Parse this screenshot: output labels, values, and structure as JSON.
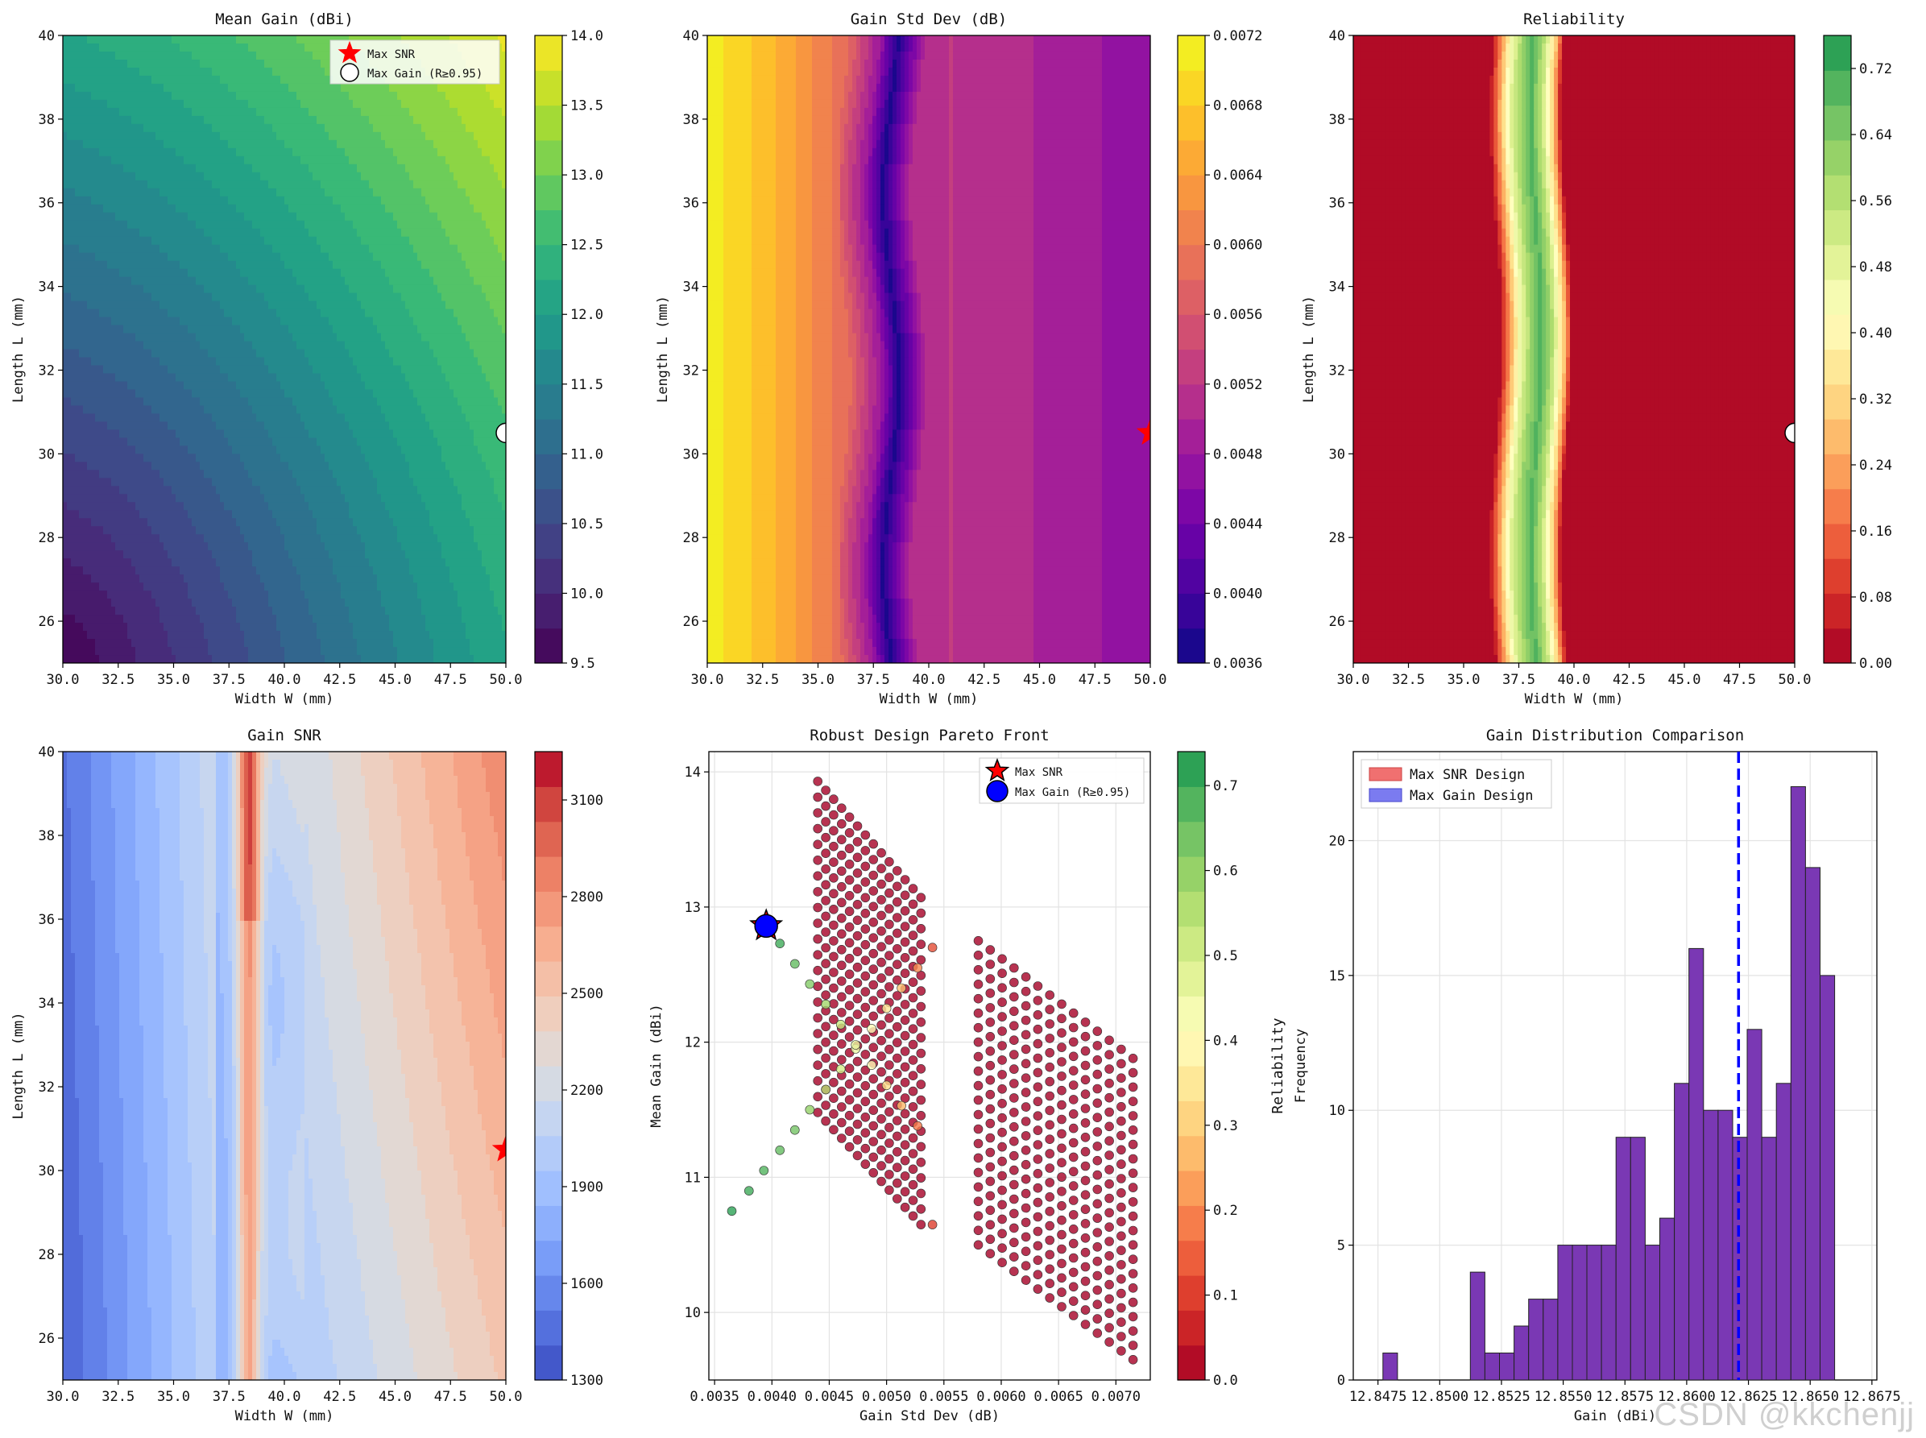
{
  "chart_data": [
    {
      "type": "contour",
      "title": "Mean Gain (dBi)",
      "xlabel": "Width W (mm)",
      "ylabel": "Length L (mm)",
      "xlim": [
        30,
        50
      ],
      "ylim": [
        25,
        40
      ],
      "xticks": [
        "30.0",
        "32.5",
        "35.0",
        "37.5",
        "40.0",
        "42.5",
        "45.0",
        "47.5",
        "50.0"
      ],
      "yticks": [
        "26",
        "28",
        "30",
        "32",
        "34",
        "36",
        "38",
        "40"
      ],
      "colormap": "viridis",
      "colorbar": {
        "min": 9.5,
        "max": 14.0,
        "ticks": [
          "9.5",
          "10.0",
          "10.5",
          "11.0",
          "11.5",
          "12.0",
          "12.5",
          "13.0",
          "13.5",
          "14.0"
        ]
      },
      "z_corners": {
        "min_at": [
          30,
          25
        ],
        "value_min": 9.5,
        "value_max": 14.0
      },
      "legend": {
        "position": "top-right",
        "entries": [
          "Max SNR",
          "Max Gain (R≥0.95)"
        ]
      },
      "markers": [
        {
          "label": "Max Gain (R≥0.95)",
          "x": 50.0,
          "y": 30.5,
          "shape": "circle"
        }
      ]
    },
    {
      "type": "contour",
      "title": "Gain Std Dev (dB)",
      "xlabel": "Width W (mm)",
      "ylabel": "Length L (mm)",
      "xlim": [
        30,
        50
      ],
      "ylim": [
        25,
        40
      ],
      "xticks": [
        "30.0",
        "32.5",
        "35.0",
        "37.5",
        "40.0",
        "42.5",
        "45.0",
        "47.5",
        "50.0"
      ],
      "yticks": [
        "26",
        "28",
        "30",
        "32",
        "34",
        "36",
        "38",
        "40"
      ],
      "colormap": "plasma",
      "colorbar": {
        "min": 0.0036,
        "max": 0.0072,
        "ticks": [
          "0.0036",
          "0.0040",
          "0.0044",
          "0.0048",
          "0.0052",
          "0.0056",
          "0.0060",
          "0.0064",
          "0.0068",
          "0.0072"
        ]
      },
      "profile_along_w": {
        "w": [
          30,
          32,
          34,
          36,
          37.5,
          38.3,
          39.5,
          41,
          44,
          47,
          50
        ],
        "std": [
          0.0071,
          0.0068,
          0.0064,
          0.0059,
          0.0048,
          0.0037,
          0.005,
          0.0052,
          0.00505,
          0.00485,
          0.00465
        ]
      },
      "markers": [
        {
          "label": "Max SNR",
          "x": 50.0,
          "y": 30.5,
          "shape": "star"
        }
      ]
    },
    {
      "type": "contour",
      "title": "Reliability",
      "xlabel": "Width W (mm)",
      "ylabel": "Length L (mm)",
      "xlim": [
        30,
        50
      ],
      "ylim": [
        25,
        40
      ],
      "xticks": [
        "30.0",
        "32.5",
        "35.0",
        "37.5",
        "40.0",
        "42.5",
        "45.0",
        "47.5",
        "50.0"
      ],
      "yticks": [
        "26",
        "28",
        "30",
        "32",
        "34",
        "36",
        "38",
        "40"
      ],
      "colormap": "RdYlGn",
      "colorbar": {
        "min": 0.0,
        "max": 0.76,
        "ticks": [
          "0.00",
          "0.08",
          "0.16",
          "0.24",
          "0.32",
          "0.40",
          "0.48",
          "0.56",
          "0.64",
          "0.72"
        ]
      },
      "profile_along_w": {
        "w": [
          30,
          36.4,
          36.8,
          37.3,
          37.8,
          38.3,
          38.8,
          39.3,
          39.7,
          50
        ],
        "reliability": [
          0.0,
          0.0,
          0.2,
          0.45,
          0.6,
          0.7,
          0.55,
          0.3,
          0.0,
          0.0
        ]
      },
      "markers": [
        {
          "label": "Max Gain (R≥0.95)",
          "x": 50.0,
          "y": 30.5,
          "shape": "circle"
        }
      ]
    },
    {
      "type": "contour",
      "title": "Gain SNR",
      "xlabel": "Width W (mm)",
      "ylabel": "Length L (mm)",
      "xlim": [
        30,
        50
      ],
      "ylim": [
        25,
        40
      ],
      "xticks": [
        "30.0",
        "32.5",
        "35.0",
        "37.5",
        "40.0",
        "42.5",
        "45.0",
        "47.5",
        "50.0"
      ],
      "yticks": [
        "26",
        "28",
        "30",
        "32",
        "34",
        "36",
        "38",
        "40"
      ],
      "colormap": "coolwarm",
      "colorbar": {
        "min": 1300,
        "max": 3250,
        "ticks": [
          "1300",
          "1600",
          "1900",
          "2200",
          "2500",
          "2800",
          "3100"
        ]
      },
      "markers": [
        {
          "label": "Max SNR",
          "x": 50.0,
          "y": 30.5,
          "shape": "star"
        }
      ]
    },
    {
      "type": "scatter",
      "title": "Robust Design Pareto Front",
      "xlabel": "Gain Std Dev (dB)",
      "ylabel": "Mean Gain (dBi)",
      "xlim": [
        0.00345,
        0.0073
      ],
      "ylim": [
        9.5,
        14.15
      ],
      "xticks": [
        "0.0035",
        "0.0040",
        "0.0045",
        "0.0050",
        "0.0055",
        "0.0060",
        "0.0065",
        "0.0070"
      ],
      "yticks": [
        "10",
        "11",
        "12",
        "13",
        "14"
      ],
      "grid": true,
      "colormap": "RdYlGn",
      "colorbar": {
        "label": "Reliability",
        "min": 0.0,
        "max": 0.74,
        "ticks": [
          "0.0",
          "0.1",
          "0.2",
          "0.3",
          "0.4",
          "0.5",
          "0.6",
          "0.7"
        ]
      },
      "clusters": [
        {
          "name": "",
          "std_range": [
            0.0044,
            0.0053
          ],
          "gain_top": [
            13.93,
            13.07
          ],
          "gain_bottom": [
            11.48,
            10.65
          ],
          "reliability": 0.0
        },
        {
          "name": "",
          "std_range": [
            0.0058,
            0.00715
          ],
          "gain_top": [
            12.75,
            11.88
          ],
          "gain_bottom": [
            10.5,
            9.65
          ],
          "reliability": 0.0
        }
      ],
      "diagonal_points": {
        "std": [
          0.00365,
          0.0038,
          0.00393,
          0.00407,
          0.0042,
          0.00433,
          0.00447,
          0.0046,
          0.00473,
          0.00487,
          0.005,
          0.00513,
          0.00527,
          0.0054
        ],
        "gain": [
          10.75,
          10.9,
          11.05,
          11.2,
          11.35,
          11.5,
          11.65,
          11.8,
          11.95,
          12.1,
          12.25,
          12.4,
          12.55,
          12.7
        ],
        "reliability": [
          0.72,
          0.7,
          0.68,
          0.66,
          0.64,
          0.6,
          0.55,
          0.5,
          0.45,
          0.4,
          0.35,
          0.28,
          0.2,
          0.12
        ]
      },
      "diagonal_points_2": {
        "std": [
          0.00393,
          0.00407,
          0.0042,
          0.00433,
          0.00447,
          0.0046,
          0.00473,
          0.00487,
          0.005,
          0.00513,
          0.00527,
          0.0054
        ],
        "gain": [
          12.88,
          12.73,
          12.58,
          12.43,
          12.28,
          12.13,
          11.98,
          11.83,
          11.68,
          11.53,
          11.38,
          10.65
        ],
        "reliability": [
          0.72,
          0.7,
          0.66,
          0.62,
          0.58,
          0.52,
          0.46,
          0.4,
          0.33,
          0.26,
          0.18,
          0.1
        ]
      },
      "highlighted": [
        {
          "label": "Max SNR",
          "x": 0.00395,
          "y": 12.86,
          "shape": "star",
          "color": "#ff0000"
        },
        {
          "label": "Max Gain (R≥0.95)",
          "x": 0.00395,
          "y": 12.86,
          "shape": "circle",
          "color": "#0000ff"
        }
      ],
      "legend": {
        "position": "top-right",
        "entries": [
          "Max SNR",
          "Max Gain (R≥0.95)"
        ]
      }
    },
    {
      "type": "histogram",
      "title": "Gain Distribution Comparison",
      "xlabel": "Gain (dBi)",
      "ylabel": "Frequency",
      "xlim": [
        12.8465,
        12.8677
      ],
      "ylim": [
        0,
        23.3
      ],
      "xticks": [
        "12.8475",
        "12.8500",
        "12.8525",
        "12.8550",
        "12.8575",
        "12.8600",
        "12.8625",
        "12.8650",
        "12.8675"
      ],
      "yticks": [
        "0",
        "5",
        "10",
        "15",
        "20"
      ],
      "grid": true,
      "legend": {
        "position": "top-left",
        "entries": [
          "Max SNR Design",
          "Max Gain Design"
        ]
      },
      "bin_start": 12.8477,
      "bin_width": 0.00059,
      "counts": [
        1,
        0,
        0,
        0,
        0,
        0,
        4,
        1,
        1,
        2,
        3,
        3,
        5,
        5,
        5,
        5,
        9,
        9,
        5,
        6,
        11,
        16,
        10,
        10,
        9,
        13,
        9,
        11,
        22,
        19,
        15
      ],
      "mean_line": 12.8621,
      "series_colors": {
        "max_snr": "#f07070",
        "max_gain": "#7b7bf0",
        "overlap": "#7a38b4"
      }
    }
  ],
  "watermark": "CSDN @kkchenjj",
  "colors": {
    "legend_star": "#ff0000",
    "legend_circle_fill": "#ffffff",
    "mean_line": "#0000ff"
  }
}
